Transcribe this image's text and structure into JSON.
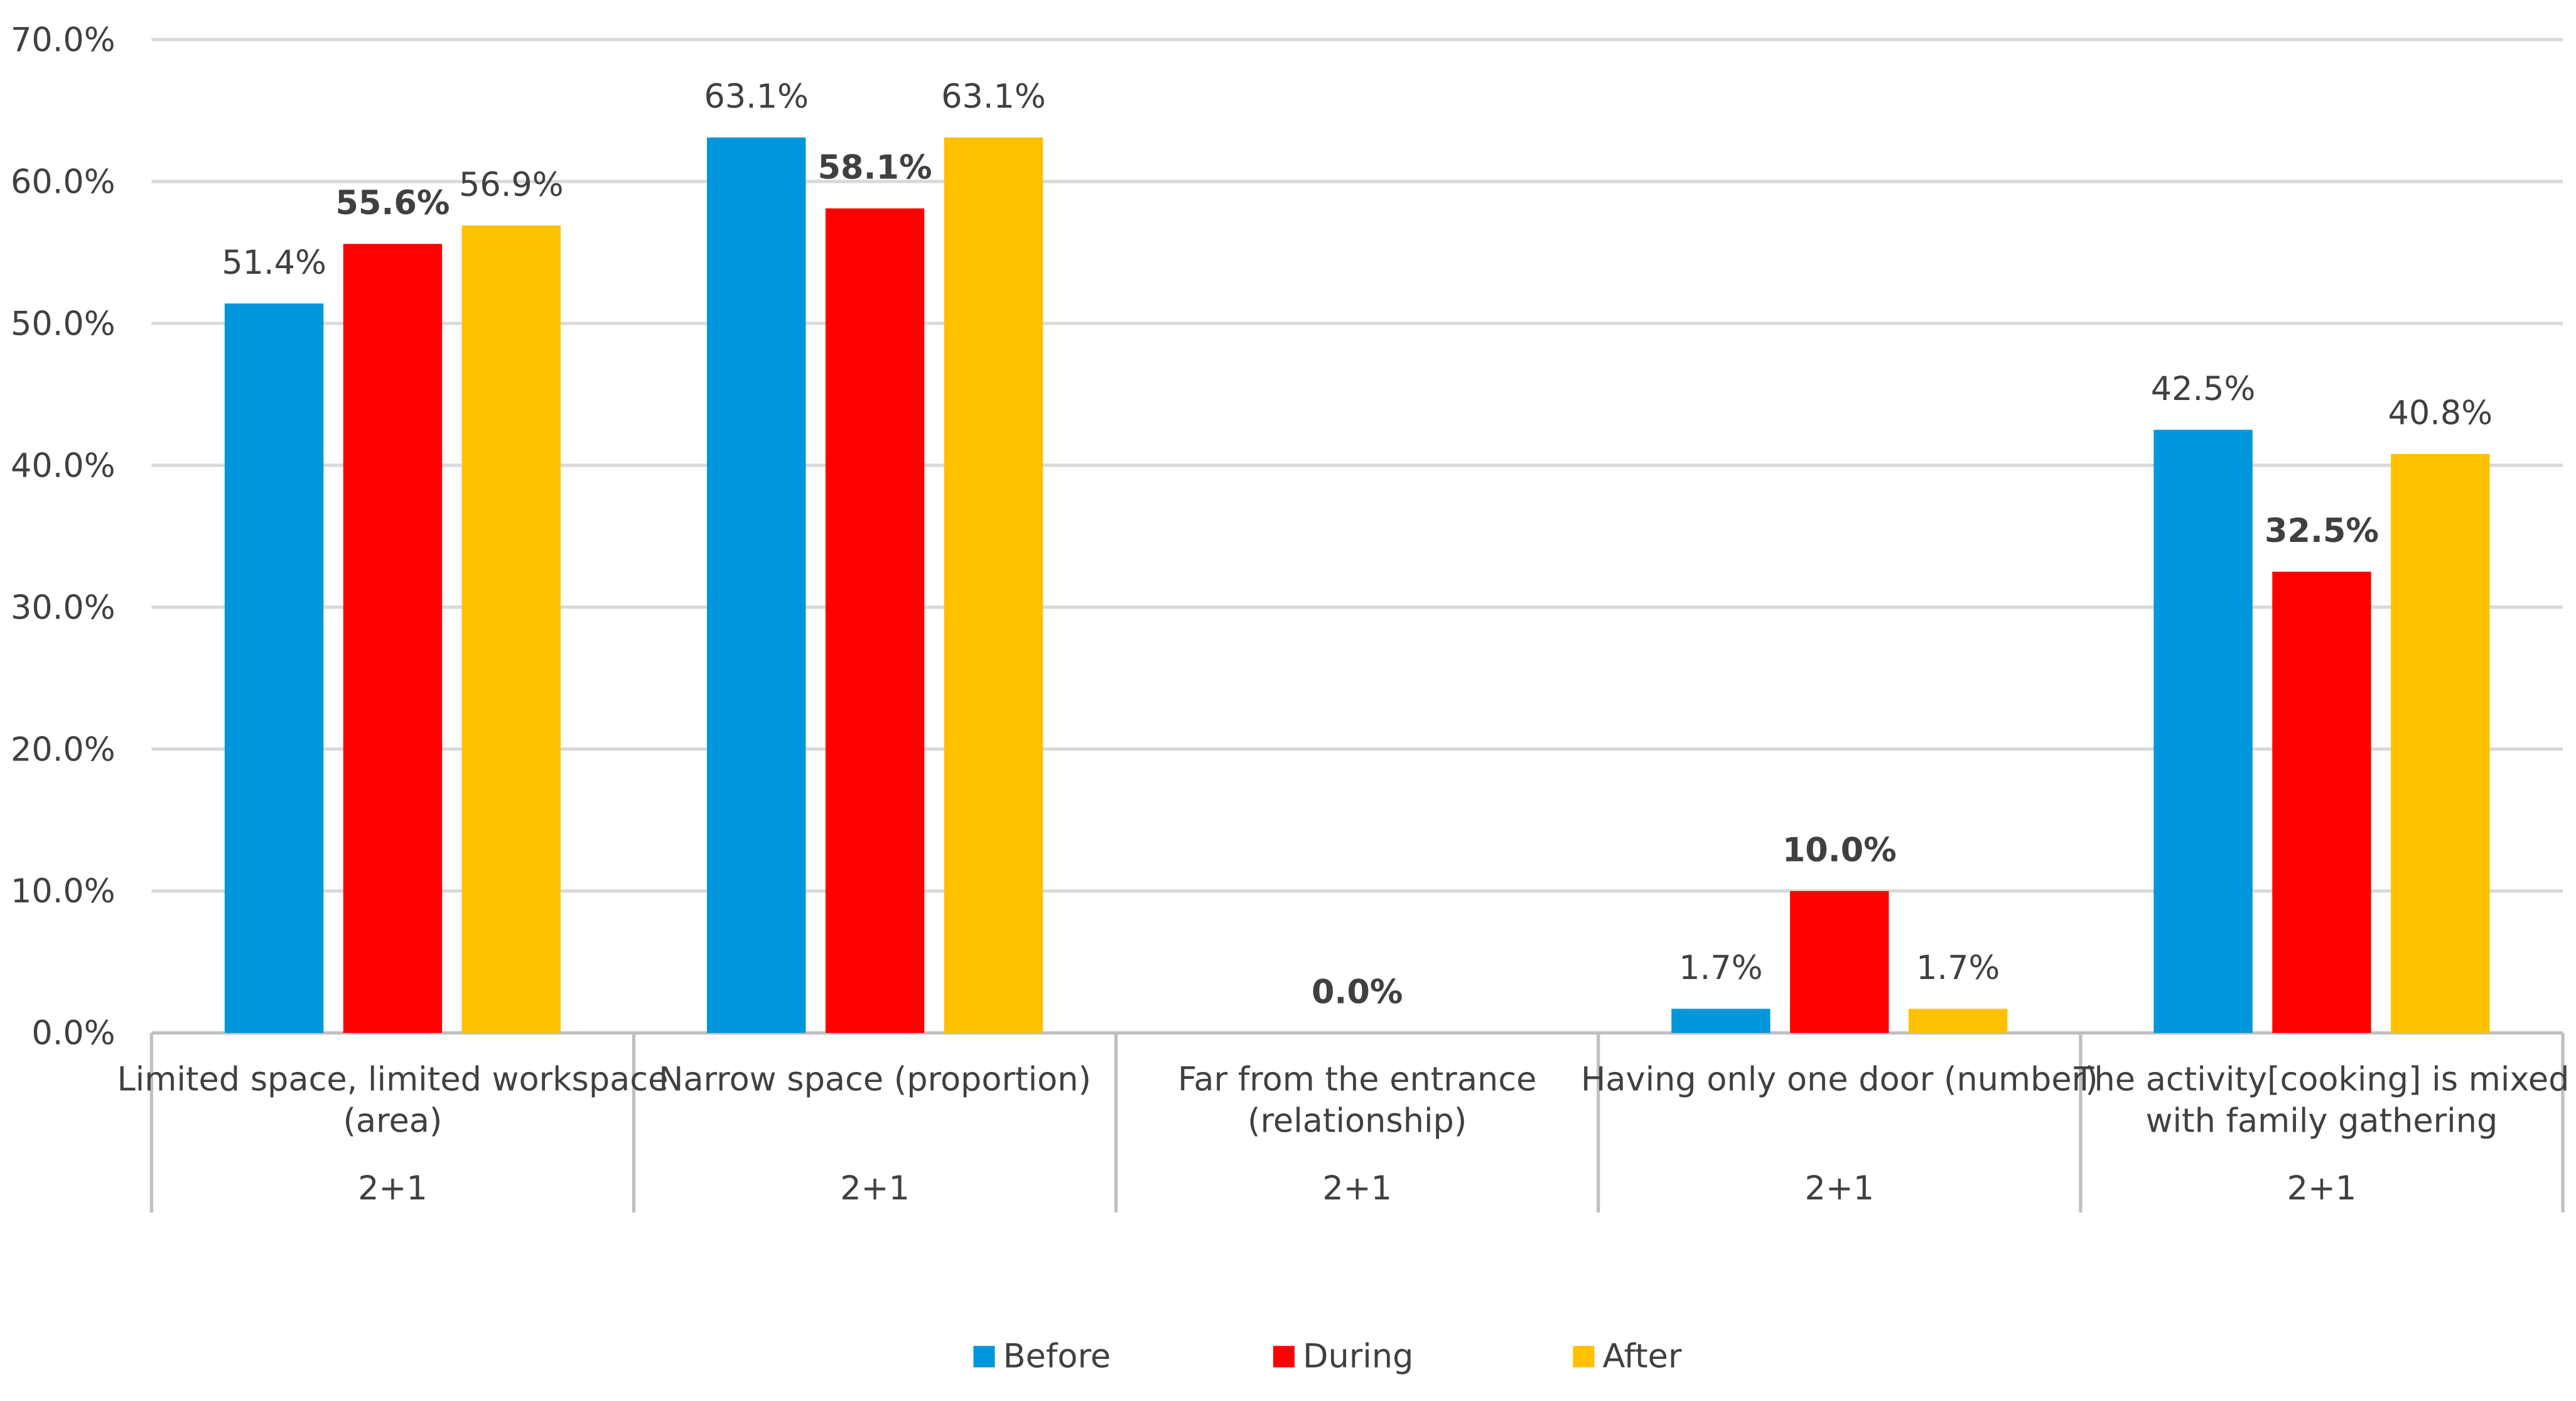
{
  "chart_data": {
    "type": "bar",
    "title": "",
    "xlabel": "",
    "ylabel": "",
    "ylim": [
      0,
      70
    ],
    "y_ticks": [
      "0.0%",
      "10.0%",
      "20.0%",
      "30.0%",
      "40.0%",
      "50.0%",
      "60.0%",
      "70.0%"
    ],
    "grid": true,
    "legend_position": "bottom",
    "categories": [
      {
        "line1": "Limited space, limited workspace",
        "line2": "(area)",
        "sub": "2+1"
      },
      {
        "line1": "Narrow space (proportion)",
        "line2": "",
        "sub": "2+1"
      },
      {
        "line1": "Far from the entrance",
        "line2": "(relationship)",
        "sub": "2+1"
      },
      {
        "line1": "Having only one door (number)",
        "line2": "",
        "sub": "2+1"
      },
      {
        "line1": "The activity[cooking] is mixed",
        "line2": "with family gathering",
        "sub": "2+1"
      }
    ],
    "series": [
      {
        "name": "Before",
        "color": "#0096DC",
        "values": [
          51.4,
          63.1,
          0.0,
          1.7,
          42.5
        ],
        "labels": [
          "51.4%",
          "63.1%",
          null,
          "1.7%",
          "42.5%"
        ],
        "bold": false
      },
      {
        "name": "During",
        "color": "#FF0000",
        "values": [
          55.6,
          58.1,
          0.0,
          10.0,
          32.5
        ],
        "labels": [
          "55.6%",
          "58.1%",
          "0.0%",
          "10.0%",
          "32.5%"
        ],
        "bold": true
      },
      {
        "name": "After",
        "color": "#FFC000",
        "values": [
          56.9,
          63.1,
          0.0,
          1.7,
          40.8
        ],
        "labels": [
          "56.9%",
          "63.1%",
          null,
          "1.7%",
          "40.8%"
        ],
        "bold": false
      }
    ],
    "colors": {
      "grid": "#D9D9D9",
      "axis": "#BFBFBF",
      "text": "#404040"
    }
  }
}
